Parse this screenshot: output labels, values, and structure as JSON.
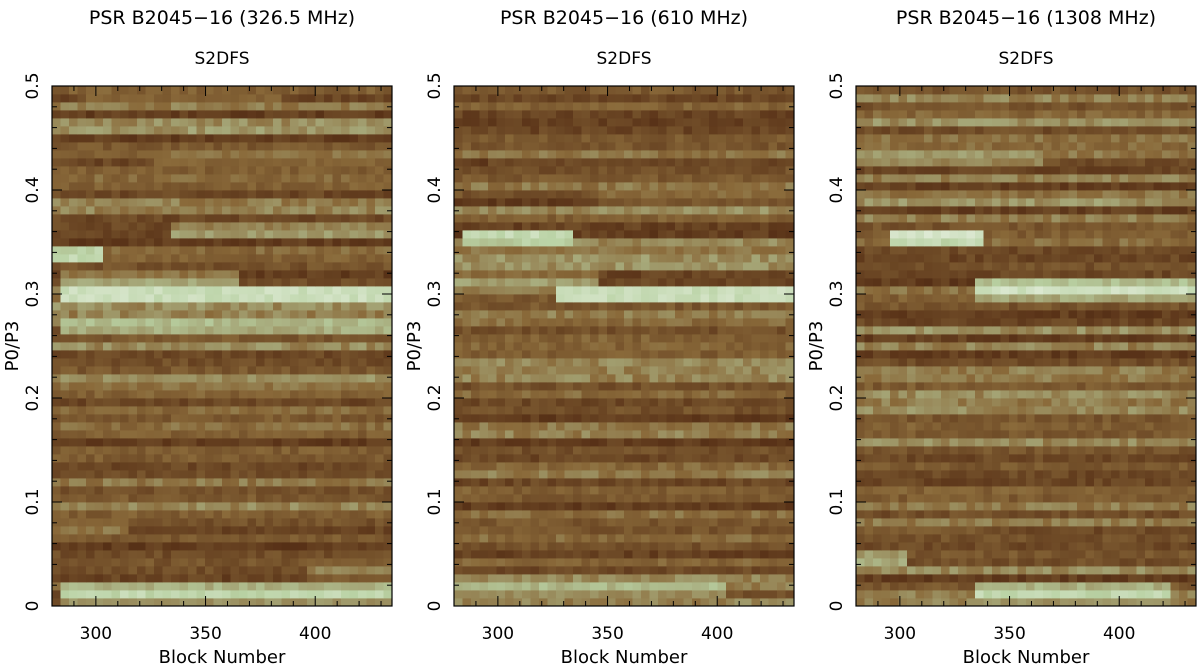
{
  "chart_data": [
    {
      "type": "heatmap",
      "title": "PSR B2045−16 (326.5 MHz)",
      "subtitle": "S2DFS",
      "xlabel": "Block Number",
      "ylabel": "P0/P3",
      "xlim": [
        280,
        435
      ],
      "ylim": [
        0,
        0.5
      ],
      "x_ticks": [
        300,
        350,
        400
      ],
      "y_ticks": [
        0,
        0.1,
        0.2,
        0.3,
        0.4,
        0.5
      ],
      "y_tick_labels": [
        "0",
        "0.1",
        "0.2",
        "0.3",
        "0.4",
        "0.5"
      ],
      "colormap": [
        "#2a1205",
        "#5a3318",
        "#8a6a3a",
        "#b9d2a4",
        "#ffffff"
      ],
      "bright_bands": [
        {
          "p0_p3": 0.013,
          "x": [
            290,
            435
          ],
          "intensity": 0.85
        },
        {
          "p0_p3": 0.035,
          "x": [
            400,
            435
          ],
          "intensity": 0.6
        },
        {
          "p0_p3": 0.075,
          "x": [
            280,
            310
          ],
          "intensity": 0.6
        },
        {
          "p0_p3": 0.217,
          "x": [
            320,
            435
          ],
          "intensity": 0.65
        },
        {
          "p0_p3": 0.27,
          "x": [
            290,
            435
          ],
          "intensity": 0.8
        },
        {
          "p0_p3": 0.3,
          "x": [
            290,
            435
          ],
          "intensity": 0.95
        },
        {
          "p0_p3": 0.312,
          "x": [
            290,
            360
          ],
          "intensity": 0.7
        },
        {
          "p0_p3": 0.338,
          "x": [
            280,
            300
          ],
          "intensity": 0.9
        },
        {
          "p0_p3": 0.36,
          "x": [
            340,
            435
          ],
          "intensity": 0.7
        },
        {
          "p0_p3": 0.432,
          "x": [
            330,
            435
          ],
          "intensity": 0.6
        },
        {
          "p0_p3": 0.485,
          "x": [
            300,
            380
          ],
          "intensity": 0.55
        }
      ]
    },
    {
      "type": "heatmap",
      "title": "PSR B2045−16 (610 MHz)",
      "subtitle": "S2DFS",
      "xlabel": "Block Number",
      "ylabel": "P0/P3",
      "xlim": [
        280,
        435
      ],
      "ylim": [
        0,
        0.5
      ],
      "x_ticks": [
        300,
        350,
        400
      ],
      "y_ticks": [
        0,
        0.1,
        0.2,
        0.3,
        0.4,
        0.5
      ],
      "y_tick_labels": [
        "0",
        "0.1",
        "0.2",
        "0.3",
        "0.4",
        "0.5"
      ],
      "colormap": [
        "#2a1205",
        "#5a3318",
        "#8a6a3a",
        "#b9d2a4",
        "#ffffff"
      ],
      "bright_bands": [
        {
          "p0_p3": 0.018,
          "x": [
            280,
            400
          ],
          "intensity": 0.75
        },
        {
          "p0_p3": 0.075,
          "x": [
            280,
            330
          ],
          "intensity": 0.5
        },
        {
          "p0_p3": 0.3,
          "x": [
            330,
            435
          ],
          "intensity": 0.95
        },
        {
          "p0_p3": 0.31,
          "x": [
            280,
            340
          ],
          "intensity": 0.7
        },
        {
          "p0_p3": 0.34,
          "x": [
            280,
            435
          ],
          "intensity": 0.6
        },
        {
          "p0_p3": 0.355,
          "x": [
            290,
            330
          ],
          "intensity": 0.9
        },
        {
          "p0_p3": 0.395,
          "x": [
            350,
            435
          ],
          "intensity": 0.55
        },
        {
          "p0_p3": 0.432,
          "x": [
            300,
            420
          ],
          "intensity": 0.45
        }
      ]
    },
    {
      "type": "heatmap",
      "title": "PSR B2045−16 (1308 MHz)",
      "subtitle": "S2DFS",
      "xlabel": "Block Number",
      "ylabel": "P0/P3",
      "xlim": [
        280,
        435
      ],
      "ylim": [
        0,
        0.5
      ],
      "x_ticks": [
        300,
        350,
        400
      ],
      "y_ticks": [
        0,
        0.1,
        0.2,
        0.3,
        0.4,
        0.5
      ],
      "y_tick_labels": [
        "0",
        "0.1",
        "0.2",
        "0.3",
        "0.4",
        "0.5"
      ],
      "colormap": [
        "#2a1205",
        "#5a3318",
        "#8a6a3a",
        "#b9d2a4",
        "#ffffff"
      ],
      "bright_bands": [
        {
          "p0_p3": 0.013,
          "x": [
            340,
            420
          ],
          "intensity": 0.85
        },
        {
          "p0_p3": 0.045,
          "x": [
            280,
            300
          ],
          "intensity": 0.75
        },
        {
          "p0_p3": 0.075,
          "x": [
            280,
            330
          ],
          "intensity": 0.5
        },
        {
          "p0_p3": 0.305,
          "x": [
            340,
            430
          ],
          "intensity": 0.9
        },
        {
          "p0_p3": 0.355,
          "x": [
            300,
            335
          ],
          "intensity": 0.95
        },
        {
          "p0_p3": 0.432,
          "x": [
            280,
            360
          ],
          "intensity": 0.7
        },
        {
          "p0_p3": 0.488,
          "x": [
            300,
            340
          ],
          "intensity": 0.55
        }
      ]
    }
  ]
}
